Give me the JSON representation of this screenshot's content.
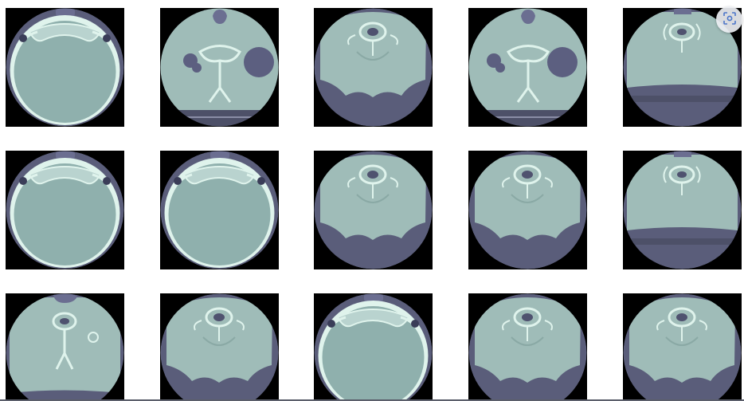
{
  "gallery": {
    "rows": 3,
    "columns": 5,
    "tiles": [
      {
        "kind": "skull-base"
      },
      {
        "kind": "neck-lung-left"
      },
      {
        "kind": "neck-deep"
      },
      {
        "kind": "neck-lung-right"
      },
      {
        "kind": "neck-top"
      },
      {
        "kind": "skull-base"
      },
      {
        "kind": "skull-base"
      },
      {
        "kind": "neck-deep"
      },
      {
        "kind": "neck-deep"
      },
      {
        "kind": "neck-top"
      },
      {
        "kind": "neck-spine"
      },
      {
        "kind": "neck-deep"
      },
      {
        "kind": "skull-base"
      },
      {
        "kind": "neck-deep"
      },
      {
        "kind": "neck-deep"
      }
    ]
  },
  "colors": {
    "background": "#ffffff",
    "tile_background": "#000000",
    "scan_outer": "#5a5d7a",
    "soft_tissue": "#9fbcb8",
    "bone": "#dff3ec",
    "brain": "#8fb0ad"
  },
  "lens_button": {
    "icon": "visual-search-icon"
  }
}
